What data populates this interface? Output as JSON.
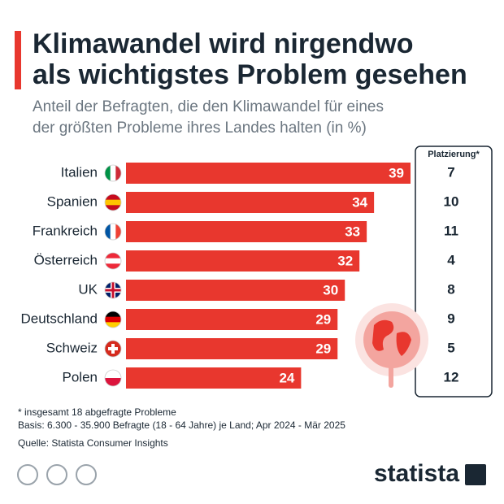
{
  "chart_data": {
    "type": "bar",
    "orientation": "horizontal",
    "title": [
      "Klimawandel wird nirgendwo",
      "als wichtigstes Problem gesehen"
    ],
    "subtitle": [
      "Anteil der Befragten, die den Klimawandel für eines",
      "der größten Probleme ihres Landes halten (in %)"
    ],
    "categories": [
      "Italien",
      "Spanien",
      "Frankreich",
      "Österreich",
      "UK",
      "Deutschland",
      "Schweiz",
      "Polen"
    ],
    "values": [
      39,
      34,
      33,
      32,
      30,
      29,
      29,
      24
    ],
    "color": "#e8372e",
    "rank_header": "Platzierung*",
    "ranks": [
      7,
      10,
      11,
      4,
      8,
      9,
      5,
      12
    ],
    "notes": [
      "* insgesamt 18 abgefragte Probleme",
      "Basis: 6.300 - 35.900 Befragte (18 - 64 Jahre) je Land; Apr 2024 - Mär 2025",
      "Quelle: Statista Consumer Insights"
    ],
    "brand": "statista"
  }
}
